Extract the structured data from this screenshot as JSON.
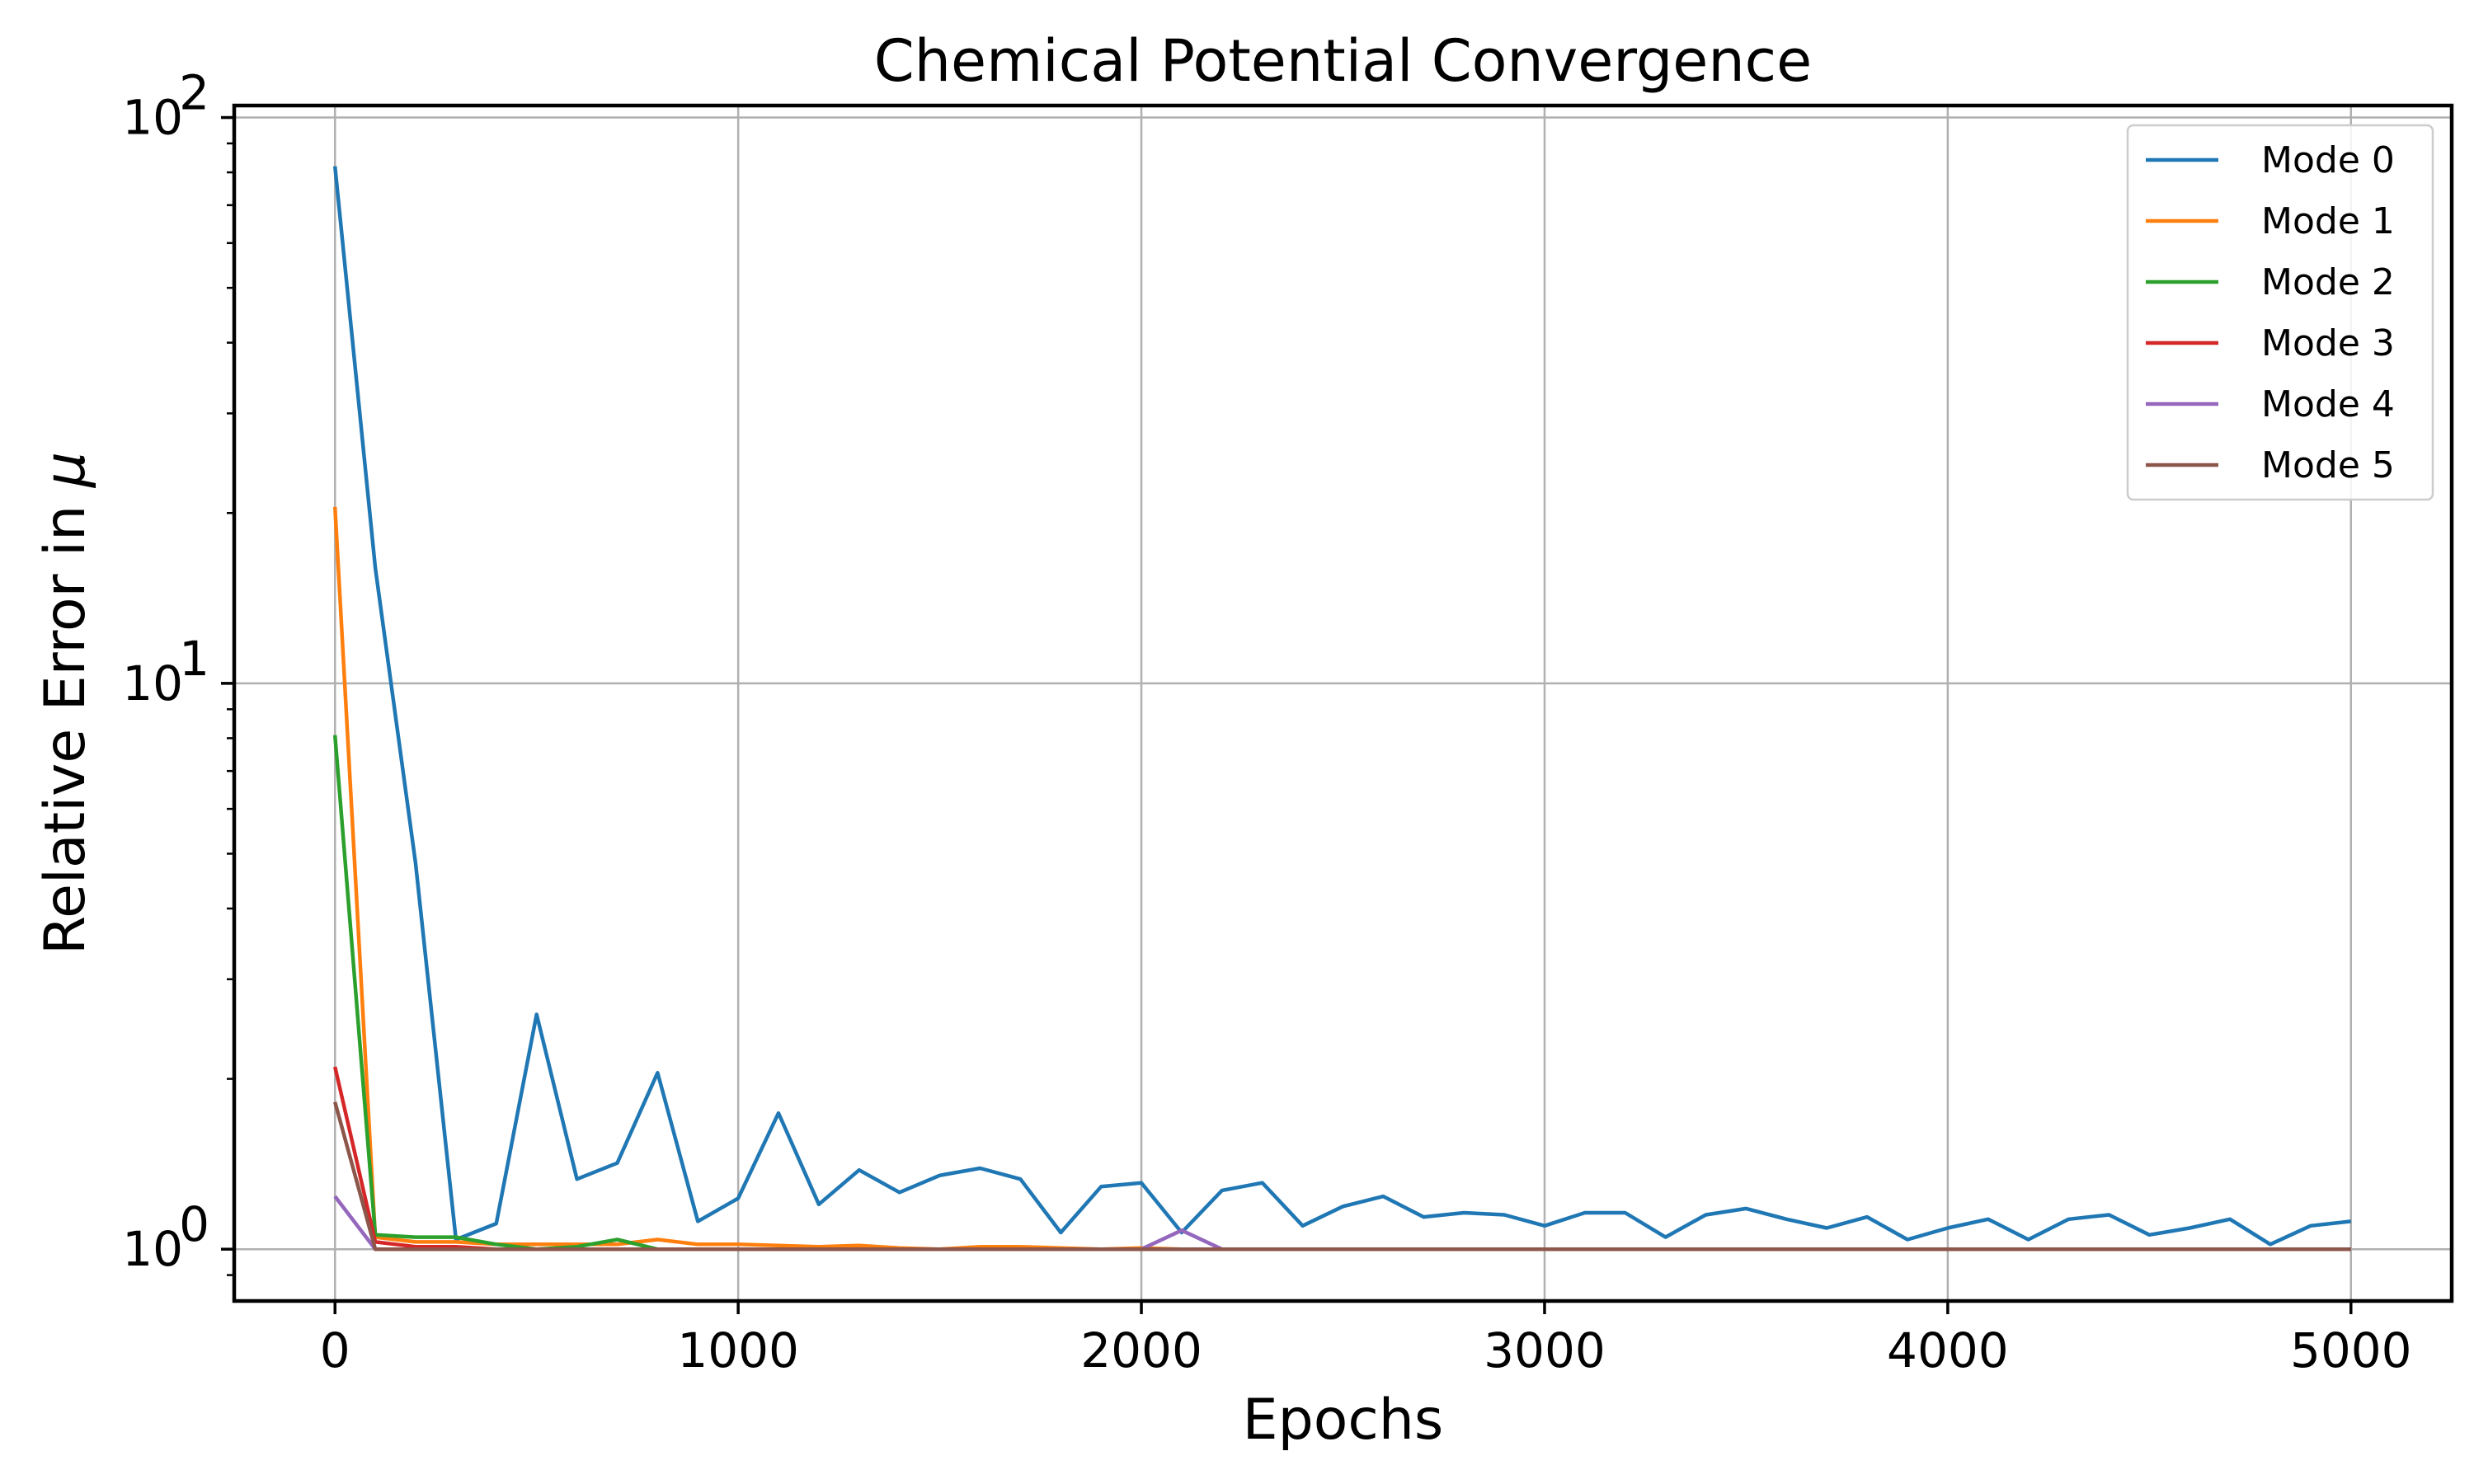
{
  "chart_data": {
    "type": "line",
    "title": "Chemical Potential Convergence",
    "xlabel": "Epochs",
    "ylabel_text": "Relative Error in ",
    "ylabel_symbol": "μ",
    "xlim": [
      -250,
      5250
    ],
    "ylim": [
      0.81,
      105
    ],
    "y_scale": "log",
    "x_ticks": [
      0,
      1000,
      2000,
      3000,
      4000,
      5000
    ],
    "x_tick_labels": [
      "0",
      "1000",
      "2000",
      "3000",
      "4000",
      "5000"
    ],
    "y_ticks": [
      1,
      10,
      100
    ],
    "y_tick_bases": [
      "10",
      "10",
      "10"
    ],
    "y_tick_exponents": [
      "0",
      "1",
      "2"
    ],
    "grid": true,
    "legend_position": "top-right",
    "x": [
      0,
      100,
      200,
      300,
      400,
      500,
      600,
      700,
      800,
      900,
      1000,
      1100,
      1200,
      1300,
      1400,
      1500,
      1600,
      1700,
      1800,
      1900,
      2000,
      2100,
      2200,
      2300,
      2400,
      2500,
      2600,
      2700,
      2800,
      2900,
      3000,
      3100,
      3200,
      3300,
      3400,
      3500,
      3600,
      3700,
      3800,
      3900,
      4000,
      4100,
      4200,
      4300,
      4400,
      4500,
      4600,
      4700,
      4800,
      4900,
      5000
    ],
    "series": [
      {
        "name": "Mode 0",
        "color": "#1f77b4",
        "values": [
          82,
          16,
          4.8,
          1.04,
          1.11,
          2.6,
          1.33,
          1.42,
          2.05,
          1.12,
          1.23,
          1.74,
          1.2,
          1.38,
          1.26,
          1.35,
          1.39,
          1.33,
          1.07,
          1.29,
          1.31,
          1.07,
          1.27,
          1.31,
          1.1,
          1.19,
          1.24,
          1.14,
          1.16,
          1.15,
          1.1,
          1.16,
          1.16,
          1.05,
          1.15,
          1.18,
          1.13,
          1.09,
          1.14,
          1.04,
          1.09,
          1.13,
          1.04,
          1.13,
          1.15,
          1.06,
          1.09,
          1.13,
          1.02,
          1.1,
          1.12
        ]
      },
      {
        "name": "Mode 1",
        "color": "#ff7f0e",
        "values": [
          20.5,
          1.05,
          1.03,
          1.03,
          1.02,
          1.02,
          1.02,
          1.02,
          1.04,
          1.02,
          1.02,
          1.015,
          1.01,
          1.015,
          1.005,
          1.0,
          1.01,
          1.01,
          1.005,
          1.0,
          1.005,
          1.0,
          1.0,
          1.0,
          1.0,
          1.0,
          1.0,
          1.0,
          1.0,
          1.0,
          1.0,
          1.0,
          1.0,
          1.0,
          1.0,
          1.0,
          1.0,
          1.0,
          1.0,
          1.0,
          1.0,
          1.0,
          1.0,
          1.0,
          1.0,
          1.0,
          1.0,
          1.0,
          1.0,
          1.0,
          1.0
        ]
      },
      {
        "name": "Mode 2",
        "color": "#2ca02c",
        "values": [
          8.1,
          1.06,
          1.05,
          1.05,
          1.02,
          1.0,
          1.01,
          1.04,
          1.0,
          1.0,
          1.0,
          1.0,
          1.0,
          1.0,
          1.0,
          1.0,
          1.0,
          1.0,
          1.0,
          1.0,
          1.0,
          1.0,
          1.0,
          1.0,
          1.0,
          1.0,
          1.0,
          1.0,
          1.0,
          1.0,
          1.0,
          1.0,
          1.0,
          1.0,
          1.0,
          1.0,
          1.0,
          1.0,
          1.0,
          1.0,
          1.0,
          1.0,
          1.0,
          1.0,
          1.0,
          1.0,
          1.0,
          1.0,
          1.0,
          1.0,
          1.0
        ]
      },
      {
        "name": "Mode 3",
        "color": "#d62728",
        "values": [
          2.1,
          1.03,
          1.01,
          1.01,
          1.0,
          1.0,
          1.0,
          1.0,
          1.0,
          1.0,
          1.0,
          1.0,
          1.0,
          1.0,
          1.0,
          1.0,
          1.0,
          1.0,
          1.0,
          1.0,
          1.0,
          1.0,
          1.0,
          1.0,
          1.0,
          1.0,
          1.0,
          1.0,
          1.0,
          1.0,
          1.0,
          1.0,
          1.0,
          1.0,
          1.0,
          1.0,
          1.0,
          1.0,
          1.0,
          1.0,
          1.0,
          1.0,
          1.0,
          1.0,
          1.0,
          1.0,
          1.0,
          1.0,
          1.0,
          1.0,
          1.0
        ]
      },
      {
        "name": "Mode 4",
        "color": "#9467bd",
        "values": [
          1.24,
          1.0,
          1.0,
          1.0,
          1.0,
          1.0,
          1.0,
          1.0,
          1.0,
          1.0,
          1.0,
          1.0,
          1.0,
          1.0,
          1.0,
          1.0,
          1.0,
          1.0,
          1.0,
          1.0,
          1.0,
          1.08,
          1.0,
          1.0,
          1.0,
          1.0,
          1.0,
          1.0,
          1.0,
          1.0,
          1.0,
          1.0,
          1.0,
          1.0,
          1.0,
          1.0,
          1.0,
          1.0,
          1.0,
          1.0,
          1.0,
          1.0,
          1.0,
          1.0,
          1.0,
          1.0,
          1.0,
          1.0,
          1.0,
          1.0,
          1.0
        ]
      },
      {
        "name": "Mode 5",
        "color": "#8c564b",
        "values": [
          1.82,
          1.0,
          1.0,
          1.0,
          1.0,
          1.0,
          1.0,
          1.0,
          1.0,
          1.0,
          1.0,
          1.0,
          1.0,
          1.0,
          1.0,
          1.0,
          1.0,
          1.0,
          1.0,
          1.0,
          1.0,
          1.0,
          1.0,
          1.0,
          1.0,
          1.0,
          1.0,
          1.0,
          1.0,
          1.0,
          1.0,
          1.0,
          1.0,
          1.0,
          1.0,
          1.0,
          1.0,
          1.0,
          1.0,
          1.0,
          1.0,
          1.0,
          1.0,
          1.0,
          1.0,
          1.0,
          1.0,
          1.0,
          1.0,
          1.0,
          1.0
        ]
      }
    ]
  }
}
